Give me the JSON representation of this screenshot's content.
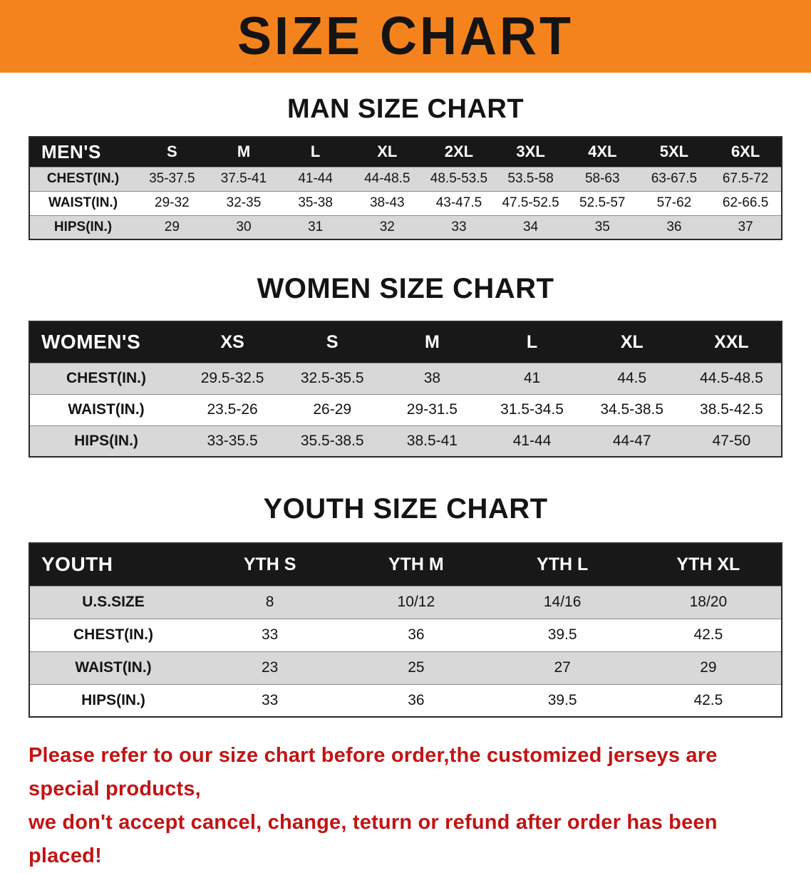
{
  "banner": {
    "title": "SIZE CHART"
  },
  "colors": {
    "banner_bg": "#f5831d",
    "header_row_bg": "#181818",
    "header_row_text": "#ffffff",
    "alt_row_bg": "#d8d8d8",
    "notice_text": "#c21414"
  },
  "tables": [
    {
      "id": "men",
      "heading": "MAN SIZE CHART",
      "corner_label": "MEN'S",
      "columns": [
        "S",
        "M",
        "L",
        "XL",
        "2XL",
        "3XL",
        "4XL",
        "5XL",
        "6XL"
      ],
      "rows": [
        {
          "label": "CHEST(IN.)",
          "values": [
            "35-37.5",
            "37.5-41",
            "41-44",
            "44-48.5",
            "48.5-53.5",
            "53.5-58",
            "58-63",
            "63-67.5",
            "67.5-72"
          ]
        },
        {
          "label": "WAIST(IN.)",
          "values": [
            "29-32",
            "32-35",
            "35-38",
            "38-43",
            "43-47.5",
            "47.5-52.5",
            "52.5-57",
            "57-62",
            "62-66.5"
          ]
        },
        {
          "label": "HIPS(IN.)",
          "values": [
            "29",
            "30",
            "31",
            "32",
            "33",
            "34",
            "35",
            "36",
            "37"
          ]
        }
      ]
    },
    {
      "id": "women",
      "heading": "WOMEN SIZE CHART",
      "corner_label": "WOMEN'S",
      "columns": [
        "XS",
        "S",
        "M",
        "L",
        "XL",
        "XXL"
      ],
      "rows": [
        {
          "label": "CHEST(IN.)",
          "values": [
            "29.5-32.5",
            "32.5-35.5",
            "38",
            "41",
            "44.5",
            "44.5-48.5"
          ]
        },
        {
          "label": "WAIST(IN.)",
          "values": [
            "23.5-26",
            "26-29",
            "29-31.5",
            "31.5-34.5",
            "34.5-38.5",
            "38.5-42.5"
          ]
        },
        {
          "label": "HIPS(IN.)",
          "values": [
            "33-35.5",
            "35.5-38.5",
            "38.5-41",
            "41-44",
            "44-47",
            "47-50"
          ]
        }
      ]
    },
    {
      "id": "youth",
      "heading": "YOUTH SIZE CHART",
      "corner_label": "YOUTH",
      "columns": [
        "YTH S",
        "YTH M",
        "YTH L",
        "YTH XL"
      ],
      "rows": [
        {
          "label": "U.S.SIZE",
          "values": [
            "8",
            "10/12",
            "14/16",
            "18/20"
          ]
        },
        {
          "label": "CHEST(IN.)",
          "values": [
            "33",
            "36",
            "39.5",
            "42.5"
          ]
        },
        {
          "label": "WAIST(IN.)",
          "values": [
            "23",
            "25",
            "27",
            "29"
          ]
        },
        {
          "label": "HIPS(IN.)",
          "values": [
            "33",
            "36",
            "39.5",
            "42.5"
          ]
        }
      ]
    }
  ],
  "footer": {
    "line1": "Please refer to our size chart before order,the customized jerseys are special products,",
    "line2": "we don't accept cancel, change, teturn or refund after order has been placed!"
  },
  "chart_data": [
    {
      "type": "table",
      "title": "MAN SIZE CHART",
      "columns": [
        "MEN'S",
        "S",
        "M",
        "L",
        "XL",
        "2XL",
        "3XL",
        "4XL",
        "5XL",
        "6XL"
      ],
      "rows": [
        [
          "CHEST(IN.)",
          "35-37.5",
          "37.5-41",
          "41-44",
          "44-48.5",
          "48.5-53.5",
          "53.5-58",
          "58-63",
          "63-67.5",
          "67.5-72"
        ],
        [
          "WAIST(IN.)",
          "29-32",
          "32-35",
          "35-38",
          "38-43",
          "43-47.5",
          "47.5-52.5",
          "52.5-57",
          "57-62",
          "62-66.5"
        ],
        [
          "HIPS(IN.)",
          "29",
          "30",
          "31",
          "32",
          "33",
          "34",
          "35",
          "36",
          "37"
        ]
      ]
    },
    {
      "type": "table",
      "title": "WOMEN SIZE CHART",
      "columns": [
        "WOMEN'S",
        "XS",
        "S",
        "M",
        "L",
        "XL",
        "XXL"
      ],
      "rows": [
        [
          "CHEST(IN.)",
          "29.5-32.5",
          "32.5-35.5",
          "38",
          "41",
          "44.5",
          "44.5-48.5"
        ],
        [
          "WAIST(IN.)",
          "23.5-26",
          "26-29",
          "29-31.5",
          "31.5-34.5",
          "34.5-38.5",
          "38.5-42.5"
        ],
        [
          "HIPS(IN.)",
          "33-35.5",
          "35.5-38.5",
          "38.5-41",
          "41-44",
          "44-47",
          "47-50"
        ]
      ]
    },
    {
      "type": "table",
      "title": "YOUTH SIZE CHART",
      "columns": [
        "YOUTH",
        "YTH S",
        "YTH M",
        "YTH L",
        "YTH XL"
      ],
      "rows": [
        [
          "U.S.SIZE",
          "8",
          "10/12",
          "14/16",
          "18/20"
        ],
        [
          "CHEST(IN.)",
          "33",
          "36",
          "39.5",
          "42.5"
        ],
        [
          "WAIST(IN.)",
          "23",
          "25",
          "27",
          "29"
        ],
        [
          "HIPS(IN.)",
          "33",
          "36",
          "39.5",
          "42.5"
        ]
      ]
    }
  ]
}
